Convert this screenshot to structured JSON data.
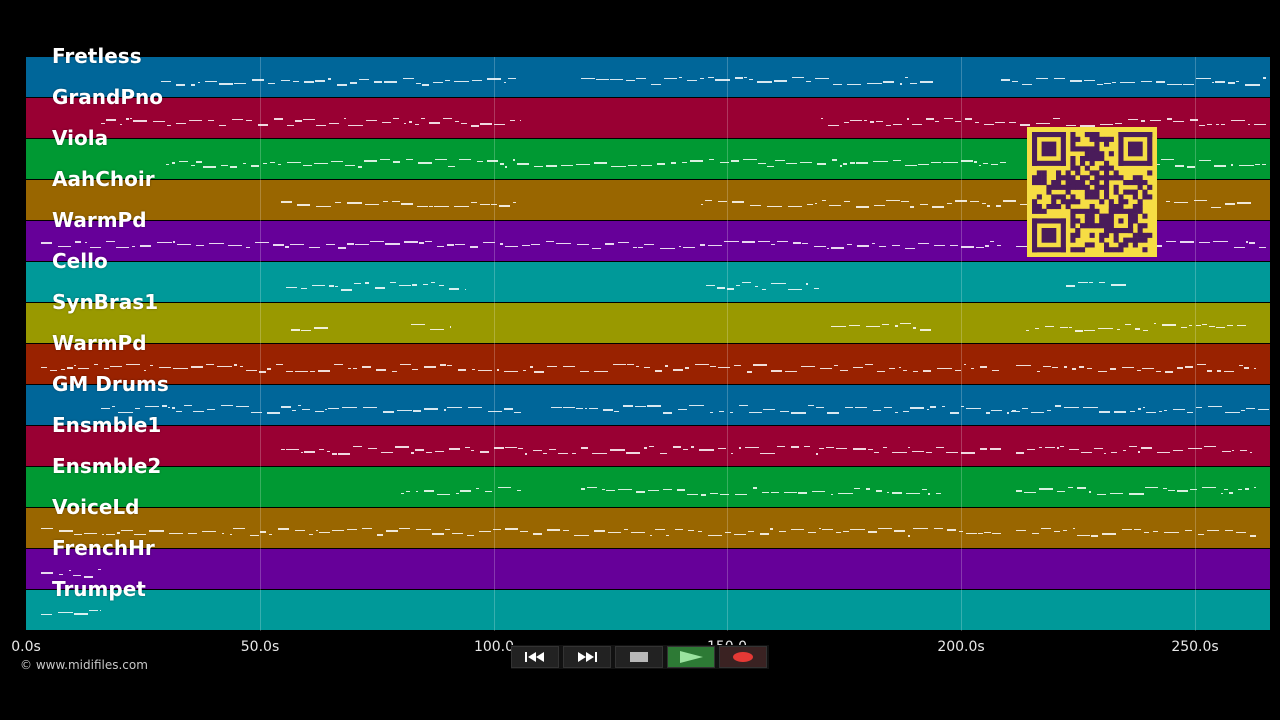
{
  "tracks": [
    {
      "name": "Fretless",
      "color": "#006699"
    },
    {
      "name": "GrandPno",
      "color": "#990033"
    },
    {
      "name": "Viola",
      "color": "#009933"
    },
    {
      "name": "AahChoir",
      "color": "#996600"
    },
    {
      "name": "WarmPd",
      "color": "#660099"
    },
    {
      "name": "Cello",
      "color": "#009999"
    },
    {
      "name": "SynBras1",
      "color": "#999900"
    },
    {
      "name": "WarmPd",
      "color": "#992200"
    },
    {
      "name": "GM Drums",
      "color": "#006699"
    },
    {
      "name": "Ensmble1",
      "color": "#990033"
    },
    {
      "name": "Ensmble2",
      "color": "#009933"
    },
    {
      "name": "VoiceLd",
      "color": "#996600"
    },
    {
      "name": "FrenchHr",
      "color": "#660099"
    },
    {
      "name": "Trumpet",
      "color": "#009999"
    }
  ],
  "timeline": {
    "ticks": [
      "0.0s",
      "50.0s",
      "100.0",
      "150.0",
      "200.0s",
      "250.0s"
    ],
    "tick_seconds": [
      0,
      50,
      100,
      150,
      200,
      250
    ],
    "max_seconds": 266
  },
  "transport": {
    "rewind_icon": "rewind-icon",
    "fast_forward_icon": "fast-forward-icon",
    "stop_icon": "stop-icon",
    "play_icon": "play-icon",
    "record_icon": "record-icon",
    "play_color": "#2d7a35",
    "record_color": "#e53935"
  },
  "copyright": "© www.midifiles.com",
  "qr_code": {
    "color": "#f6dd44",
    "module_color": "#4a1c5a"
  }
}
